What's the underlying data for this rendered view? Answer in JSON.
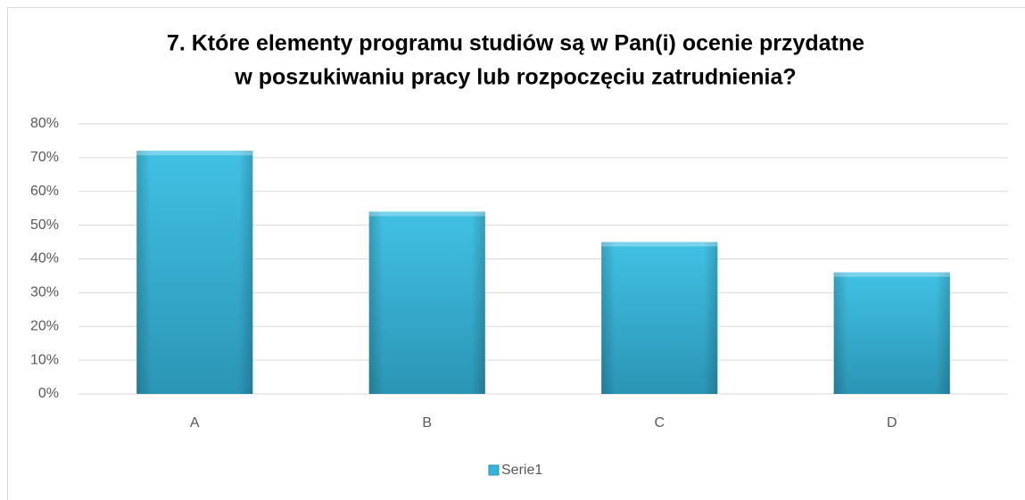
{
  "chart_data": {
    "type": "bar",
    "title": [
      "7. Które elementy programu studiów są w Pan(i) ocenie przydatne",
      "w poszukiwaniu pracy lub rozpoczęciu zatrudnienia?"
    ],
    "categories": [
      "A",
      "B",
      "C",
      "D"
    ],
    "series": [
      {
        "name": "Serie1",
        "color": "#31b5da",
        "values": [
          72,
          54,
          45,
          36
        ]
      }
    ],
    "ylim": [
      0,
      80
    ],
    "yticks": [
      {
        "value": 0,
        "label": "0%"
      },
      {
        "value": 10,
        "label": "10%"
      },
      {
        "value": 20,
        "label": "20%"
      },
      {
        "value": 30,
        "label": "30%"
      },
      {
        "value": 40,
        "label": "40%"
      },
      {
        "value": 50,
        "label": "50%"
      },
      {
        "value": 60,
        "label": "60%"
      },
      {
        "value": 70,
        "label": "70%"
      },
      {
        "value": 80,
        "label": "80%"
      }
    ],
    "grid": true,
    "legend": "bottom"
  }
}
